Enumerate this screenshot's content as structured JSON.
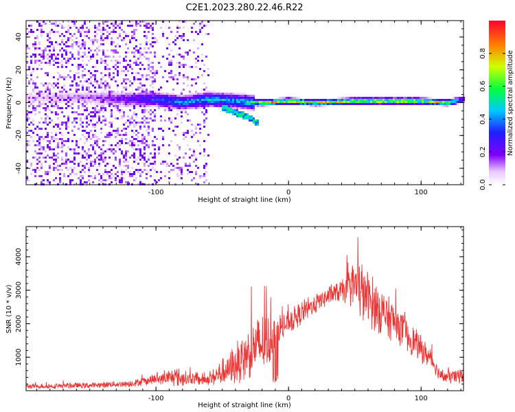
{
  "figure_title": "C2E1.2023.280.22.46.R22",
  "chart_data": [
    {
      "type": "heatmap",
      "title": "",
      "xlabel": "Height of straight line (km)",
      "ylabel": "Frequency (Hz)",
      "xlim": [
        -198,
        132
      ],
      "ylim": [
        -50,
        50
      ],
      "xticks": [
        "-100",
        "0",
        "100"
      ],
      "yticks": [
        "-40",
        "-20",
        "0",
        "20",
        "40"
      ],
      "colorbar": {
        "label": "Normalized spectral amplitude",
        "range": [
          0,
          1
        ],
        "ticks": [
          "0.0",
          "0.2",
          "0.4",
          "0.6",
          "0.8"
        ]
      },
      "ridge": {
        "x": [
          -190,
          -150,
          -120,
          -100,
          -80,
          -60,
          -40,
          -25,
          -20,
          0,
          20,
          50,
          80,
          100,
          120,
          132
        ],
        "center_freq": [
          3,
          3,
          2,
          2,
          0,
          2,
          1,
          0,
          0,
          1,
          0,
          1,
          1,
          1,
          0,
          2
        ],
        "peak_amplitude": [
          0.1,
          0.15,
          0.3,
          0.45,
          0.5,
          0.6,
          0.55,
          0.7,
          0.95,
          0.95,
          0.95,
          0.95,
          0.95,
          0.95,
          0.9,
          0.4
        ]
      },
      "side_branch": {
        "x": [
          -50,
          -30,
          -22
        ],
        "freq": [
          -3,
          -9,
          -13
        ]
      },
      "noise_region_x": [
        -198,
        -60
      ]
    },
    {
      "type": "line",
      "title": "",
      "xlabel": "Height of straight line (km)",
      "ylabel": "SNR (10 * v/v)",
      "xlim": [
        -198,
        132
      ],
      "ylim": [
        0,
        4900
      ],
      "xticks": [
        "-100",
        "0",
        "100"
      ],
      "yticks": [
        "1000",
        "2000",
        "3000",
        "4000"
      ],
      "series_color": "#ee3333",
      "envelope": {
        "x": [
          -198,
          -150,
          -120,
          -95,
          -85,
          -75,
          -60,
          -45,
          -35,
          -25,
          -20,
          -12,
          -10,
          0,
          10,
          25,
          40,
          50,
          55,
          62,
          70,
          85,
          100,
          108,
          115,
          125,
          132
        ],
        "baseline": [
          120,
          150,
          200,
          350,
          380,
          330,
          320,
          600,
          900,
          1200,
          1300,
          1500,
          1700,
          2000,
          2300,
          2700,
          2950,
          3050,
          2900,
          2600,
          2300,
          1800,
          1200,
          900,
          400,
          400,
          450
        ],
        "spread": [
          120,
          150,
          170,
          300,
          500,
          350,
          300,
          900,
          1200,
          1400,
          1600,
          1100,
          900,
          600,
          600,
          500,
          500,
          1300,
          1600,
          1400,
          1200,
          900,
          700,
          500,
          300,
          400,
          400
        ]
      }
    }
  ]
}
